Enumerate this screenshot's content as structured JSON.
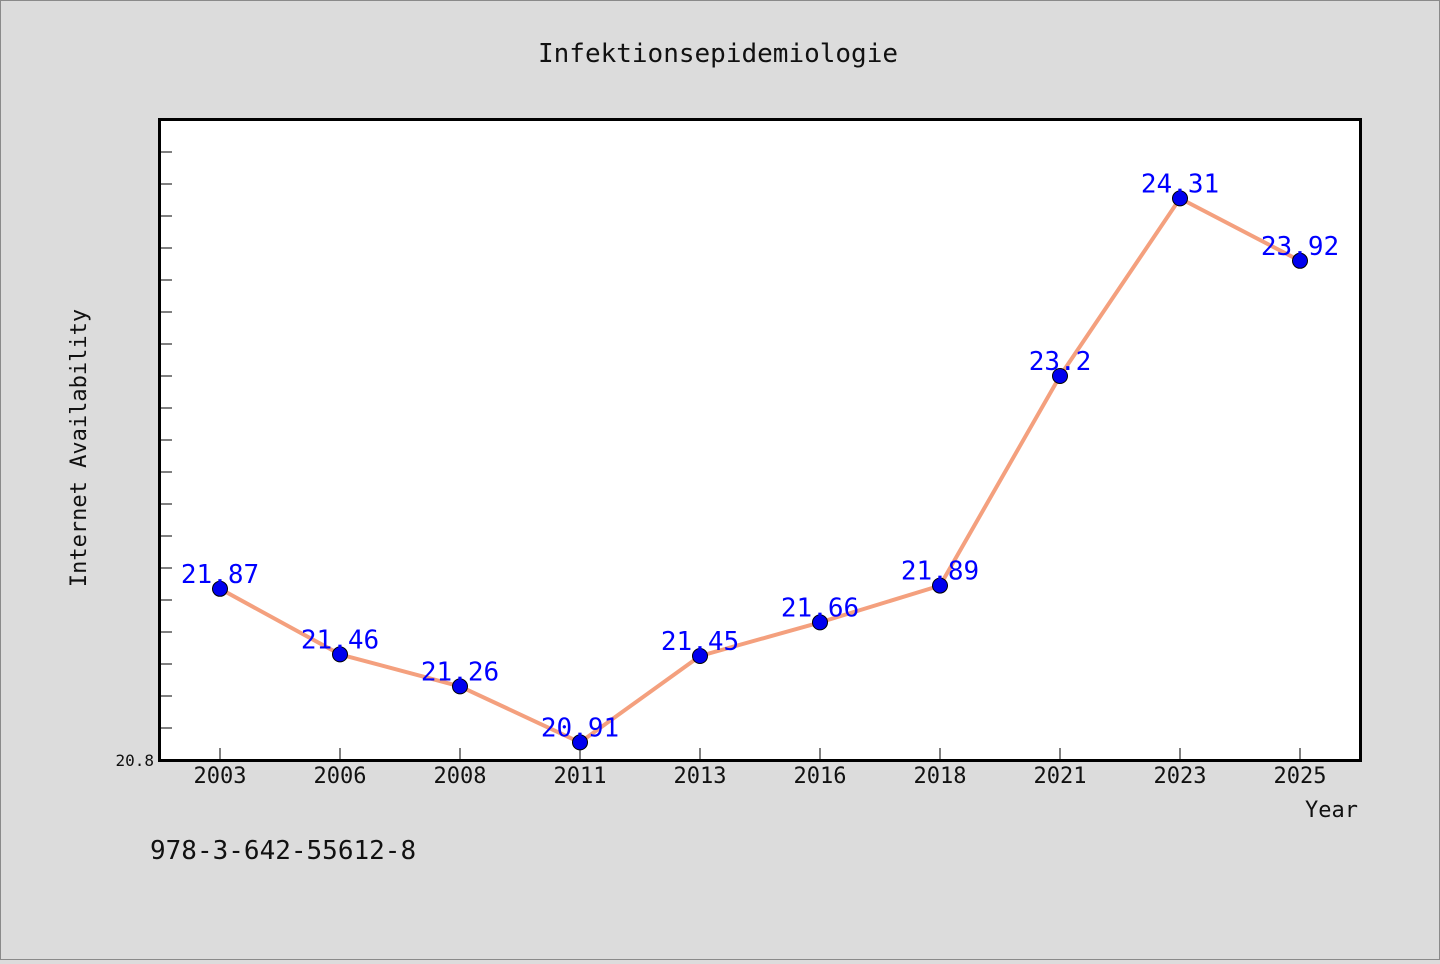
{
  "chart_data": {
    "type": "line",
    "title": "Infektionsepidemiologie",
    "xlabel": "Year",
    "ylabel": "Internet Availability",
    "categories": [
      "2003",
      "2006",
      "2008",
      "2011",
      "2013",
      "2016",
      "2018",
      "2021",
      "2023",
      "2025"
    ],
    "series": [
      {
        "values": [
          21.87,
          21.46,
          21.26,
          20.91,
          21.45,
          21.66,
          21.89,
          23.2,
          24.31,
          23.92
        ],
        "data_labels": [
          "21.87",
          "21.46",
          "21.26",
          "20.91",
          "21.45",
          "21.66",
          "21.89",
          "23.2",
          "24.31",
          "23.92"
        ]
      }
    ],
    "ylim": [
      20.8,
      24.8
    ],
    "yticklabels": [
      "20.8"
    ],
    "grid": false,
    "line_color": "#f4a07e",
    "marker_color": "#0000ee",
    "label_color": "#0000ff"
  },
  "footer": {
    "code": "978-3-642-55612-8"
  }
}
